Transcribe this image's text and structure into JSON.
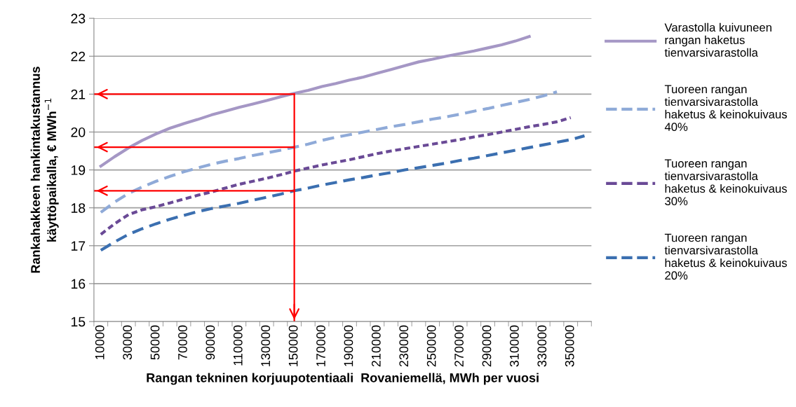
{
  "chart_data": {
    "type": "line",
    "xlabel": "Rangan tekninen korjuupotentiaali  Rovaniemellä, MWh per vuosi",
    "ylabel": "Rankahakkeen hankintakustannus\nkäyttöpaikalla, € MWh$^{−1}$",
    "categories": [
      "10000",
      null,
      "30000",
      null,
      "50000",
      null,
      "70000",
      null,
      "90000",
      null,
      "110000",
      null,
      "130000",
      null,
      "150000",
      null,
      "170000",
      null,
      "190000",
      null,
      "210000",
      null,
      "230000",
      null,
      "250000",
      null,
      "270000",
      null,
      "290000",
      null,
      "310000",
      null,
      "330000",
      null,
      "350000",
      null
    ],
    "series": [
      {
        "name": "Varastolla kuivuneen\nrangan haketus\ntienvarsivarastolla",
        "color": "#a597c5",
        "line_style": "solid",
        "values": [
          19.1,
          19.35,
          19.58,
          19.78,
          19.95,
          20.1,
          20.22,
          20.33,
          20.45,
          20.55,
          20.65,
          20.74,
          20.83,
          20.93,
          21.02,
          21.1,
          21.2,
          21.28,
          21.37,
          21.45,
          21.55,
          21.65,
          21.75,
          21.85,
          21.92,
          22.0,
          22.07,
          22.14,
          22.22,
          22.3,
          22.4,
          22.52,
          null,
          null,
          null,
          null
        ]
      },
      {
        "name": "Tuoreen rangan\ntienvarsivarastolla\nhaketus & keinokuivaus\n40%",
        "color": "#8faad8",
        "line_style": "dashed",
        "values": [
          17.88,
          18.15,
          18.38,
          18.55,
          18.7,
          18.83,
          18.95,
          19.05,
          19.15,
          19.23,
          19.3,
          19.38,
          19.45,
          19.52,
          19.6,
          19.68,
          19.78,
          19.86,
          19.93,
          20.0,
          20.07,
          20.14,
          20.2,
          20.27,
          20.34,
          20.4,
          20.47,
          20.55,
          20.62,
          20.7,
          20.78,
          20.86,
          20.95,
          21.06,
          null,
          null
        ]
      },
      {
        "name": "Tuoreen rangan\ntienvarsivarastolla\nhaketus & keinokuivaus\n30%",
        "color": "#6a4a96",
        "line_style": "dotted",
        "values": [
          17.3,
          17.58,
          17.82,
          17.95,
          18.03,
          18.13,
          18.23,
          18.33,
          18.42,
          18.52,
          18.62,
          18.7,
          18.78,
          18.87,
          18.97,
          19.05,
          19.13,
          19.2,
          19.27,
          19.35,
          19.43,
          19.5,
          19.56,
          19.62,
          19.68,
          19.74,
          19.8,
          19.87,
          19.93,
          20.0,
          20.07,
          20.14,
          20.2,
          20.27,
          20.38,
          null
        ]
      },
      {
        "name": "Tuoreen rangan\ntienvarsivarastolla\nhaketus & keinokuivaus\n20%",
        "color": "#3b6fb0",
        "line_style": "dashed",
        "values": [
          16.88,
          17.1,
          17.3,
          17.45,
          17.58,
          17.7,
          17.8,
          17.9,
          17.98,
          18.05,
          18.12,
          18.2,
          18.28,
          18.36,
          18.45,
          18.52,
          18.6,
          18.67,
          18.74,
          18.8,
          18.87,
          18.93,
          19.0,
          19.06,
          19.12,
          19.18,
          19.25,
          19.31,
          19.38,
          19.45,
          19.52,
          19.59,
          19.66,
          19.73,
          19.8,
          19.9
        ]
      }
    ],
    "ylim": [
      15,
      23
    ],
    "yticks": [
      15,
      16,
      17,
      18,
      19,
      20,
      21,
      22,
      23
    ],
    "grid": "y",
    "legend": "right",
    "marker": "none",
    "ref_lines": [
      {
        "axis": "y",
        "value": 21,
        "color": "#ff0000"
      },
      {
        "axis": "y",
        "value": 19.6,
        "color": "#ff0000"
      },
      {
        "axis": "y",
        "value": 18.45,
        "color": "#ff0000"
      },
      {
        "axis": "x",
        "value": "150000",
        "color": "#ff0000"
      }
    ]
  }
}
